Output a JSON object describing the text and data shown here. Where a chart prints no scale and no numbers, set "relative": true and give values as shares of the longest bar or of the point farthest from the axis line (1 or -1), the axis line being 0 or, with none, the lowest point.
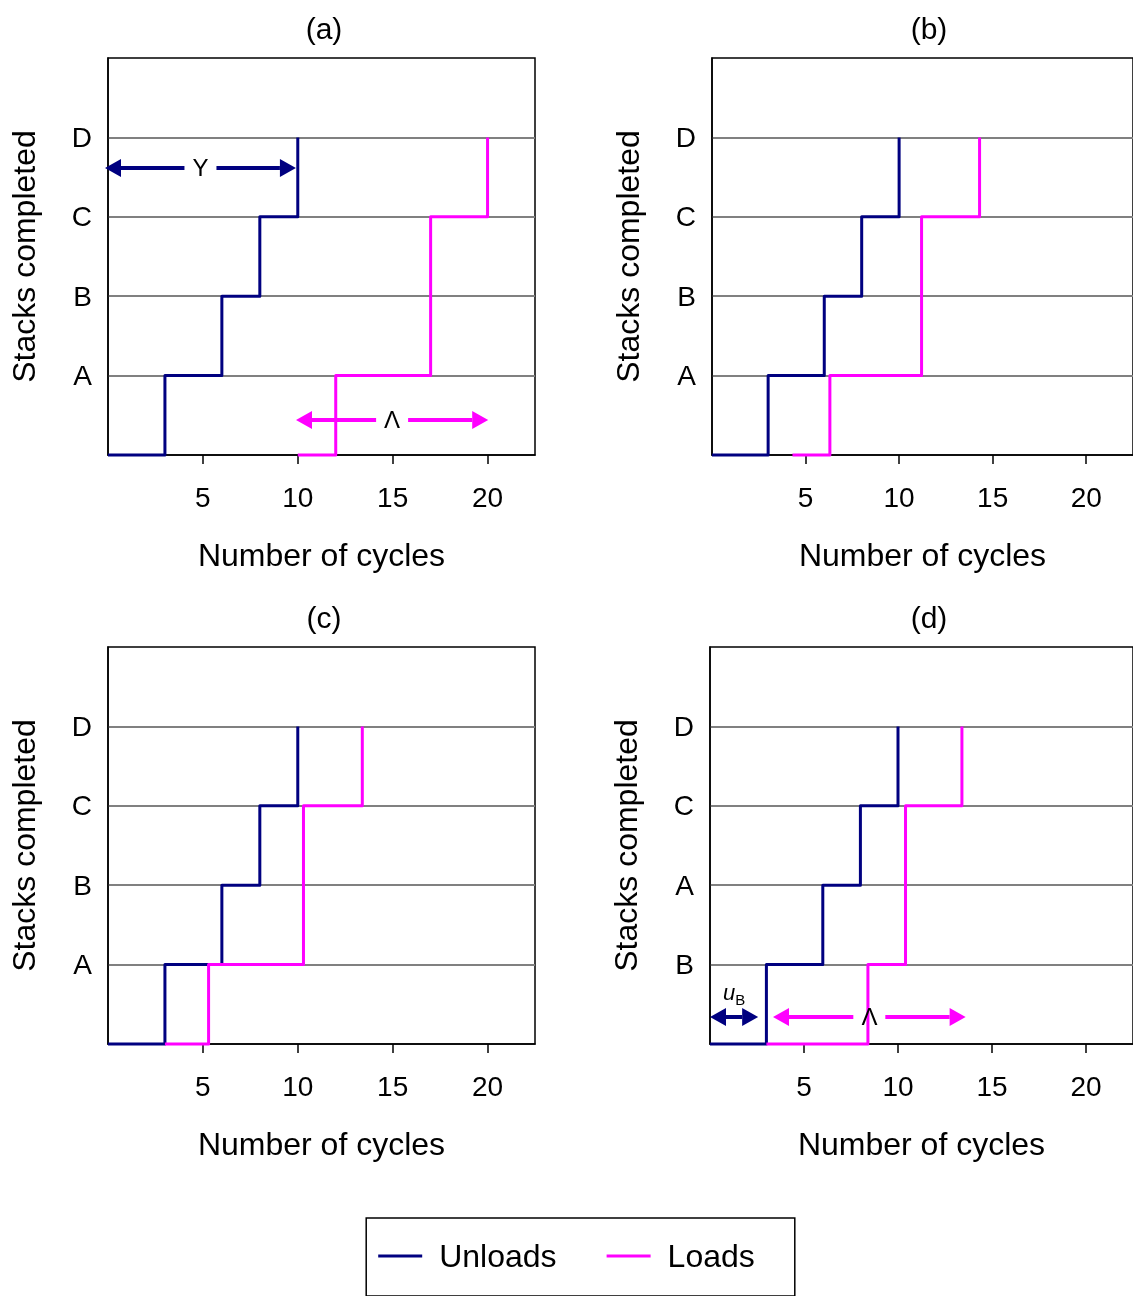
{
  "chart_data": [
    {
      "type": "step",
      "title": "(a)",
      "xlabel": "Number of cycles",
      "ylabel": "Stacks completed",
      "xlim": [
        0,
        22.5
      ],
      "xticks": [
        5,
        10,
        15,
        20
      ],
      "relative": true,
      "y_categories": [
        "D",
        "C",
        "B",
        "A"
      ],
      "grid": "y",
      "marker": "none",
      "legend": false,
      "series": [
        {
          "color": "#000080",
          "x": [
            0,
            3,
            6,
            8,
            10
          ],
          "values": [
            0,
            0.25,
            0.5,
            0.75,
            1
          ]
        },
        {
          "color": "#ff00ff",
          "x": [
            10,
            12,
            17,
            20
          ],
          "values": [
            0,
            0.25,
            0.75,
            1
          ]
        }
      ],
      "annotations": [
        "Y",
        "Λ"
      ]
    },
    {
      "type": "step",
      "title": "(b)",
      "xlabel": "Number of cycles",
      "ylabel": "Stacks completed",
      "xlim": [
        0,
        22.5
      ],
      "xticks": [
        5,
        10,
        15,
        20
      ],
      "relative": true,
      "y_categories": [
        "D",
        "C",
        "B",
        "A"
      ],
      "grid": "y",
      "marker": "none",
      "legend": false,
      "series": [
        {
          "color": "#000080",
          "x": [
            0,
            3,
            6,
            8,
            10
          ],
          "values": [
            0,
            0.25,
            0.5,
            0.75,
            1
          ]
        },
        {
          "color": "#ff00ff",
          "x": [
            4.3,
            6.3,
            11.2,
            14.3
          ],
          "values": [
            0,
            0.25,
            0.75,
            1
          ]
        }
      ]
    },
    {
      "type": "step",
      "title": "(c)",
      "xlabel": "Number of cycles",
      "ylabel": "Stacks completed",
      "xlim": [
        0,
        22.5
      ],
      "xticks": [
        5,
        10,
        15,
        20
      ],
      "relative": true,
      "y_categories": [
        "D",
        "C",
        "B",
        "A"
      ],
      "grid": "y",
      "marker": "none",
      "legend": false,
      "series": [
        {
          "color": "#000080",
          "x": [
            0,
            3,
            6,
            8,
            10
          ],
          "values": [
            0,
            0.25,
            0.5,
            0.75,
            1
          ]
        },
        {
          "color": "#ff00ff",
          "x": [
            3,
            5.3,
            10.3,
            13.4
          ],
          "values": [
            0,
            0.25,
            0.75,
            1
          ]
        }
      ]
    },
    {
      "type": "step",
      "title": "(d)",
      "xlabel": "Number of cycles",
      "ylabel": "Stacks completed",
      "xlim": [
        0,
        22.5
      ],
      "xticks": [
        5,
        10,
        15,
        20
      ],
      "relative": true,
      "y_categories": [
        "D",
        "C",
        "A",
        "B"
      ],
      "grid": "y",
      "marker": "none",
      "legend": "bottom",
      "series": [
        {
          "name": "Unloads",
          "color": "#000080",
          "x": [
            0,
            3,
            6,
            8,
            10
          ],
          "values": [
            0,
            0.25,
            0.5,
            0.75,
            1
          ]
        },
        {
          "name": "Loads",
          "color": "#ff00ff",
          "x": [
            3,
            8.4,
            10.4,
            13.4
          ],
          "values": [
            0,
            0.25,
            0.75,
            1
          ]
        }
      ],
      "annotations": [
        "u$_{B}$",
        "Λ"
      ]
    }
  ]
}
